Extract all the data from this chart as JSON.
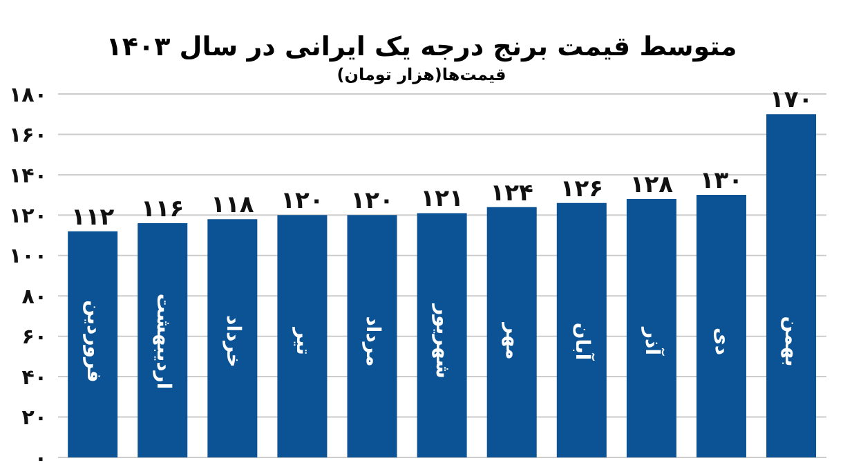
{
  "chart_data": {
    "type": "bar",
    "title": "متوسط قیمت برنج درجه یک ایرانی در سال ۱۴۰۳",
    "subtitle": "قیمت‌ها(هزار تومان)",
    "categories": [
      "فروردین",
      "اردیبهشت",
      "خرداد",
      "تیر",
      "مرداد",
      "شهریور",
      "مهر",
      "آبان",
      "آذر",
      "دی",
      "بهمن"
    ],
    "values": [
      112,
      116,
      118,
      120,
      120,
      121,
      124,
      126,
      128,
      130,
      170
    ],
    "value_labels": [
      "۱۱۲",
      "۱۱۶",
      "۱۱۸",
      "۱۲۰",
      "۱۲۰",
      "۱۲۱",
      "۱۲۴",
      "۱۲۶",
      "۱۲۸",
      "۱۳۰",
      "۱۷۰"
    ],
    "color": "#0b5394",
    "ylim": [
      0,
      180
    ],
    "yticks": [
      {
        "value": 0,
        "label": "۰"
      },
      {
        "value": 20,
        "label": "۲۰"
      },
      {
        "value": 40,
        "label": "۴۰"
      },
      {
        "value": 60,
        "label": "۶۰"
      },
      {
        "value": 80,
        "label": "۸۰"
      },
      {
        "value": 100,
        "label": "۱۰۰"
      },
      {
        "value": 120,
        "label": "۱۲۰"
      },
      {
        "value": 140,
        "label": "۱۴۰"
      },
      {
        "value": 160,
        "label": "۱۶۰"
      },
      {
        "value": 180,
        "label": "۱۸۰"
      }
    ],
    "grid": "y"
  }
}
